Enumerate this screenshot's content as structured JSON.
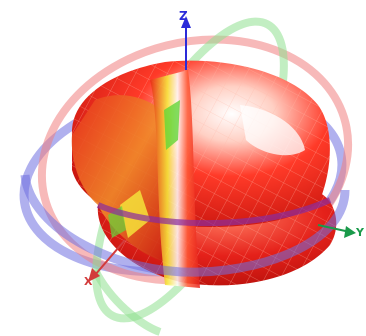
{
  "view": {
    "background": "#ffffff"
  },
  "axes": {
    "z_label": "Z",
    "y_label": "Y",
    "x_label": "X",
    "z_color": "#2b2bd9",
    "y_color": "#1a9a4a",
    "x_color": "#d23b3b"
  },
  "rings": {
    "blue": "#6f6fe0",
    "red": "#f08080",
    "green": "#8fe08f"
  },
  "surface": {
    "base_color": "#e8201a",
    "highlight_color": "#ffffff",
    "accent_yellow": "#f5e23a",
    "accent_green": "#63d63a",
    "mesh_stroke": "#ffb0a0"
  },
  "icons": {
    "z_axis_arrow": "arrow-up-icon",
    "y_axis_arrow": "arrow-right-icon",
    "x_axis_arrow": "arrow-down-left-icon"
  }
}
